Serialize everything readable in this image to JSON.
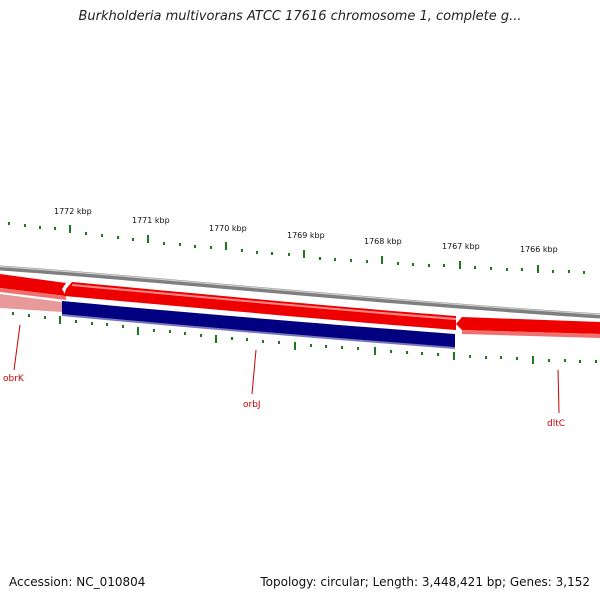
{
  "title": "Burkholderia multivorans ATCC 17616 chromosome 1, complete g...",
  "scale_labels": [
    "1772 kbp",
    "1771 kbp",
    "1770 kbp",
    "1769 kbp",
    "1768 kbp",
    "1767 kbp",
    "1766 kbp"
  ],
  "genes": [
    {
      "name": "obrK",
      "strand": "forward",
      "color": "#ee0000"
    },
    {
      "name": "orbJ",
      "strand": "reverse",
      "color": "#000080"
    },
    {
      "name": "dltC",
      "strand": "forward",
      "color": "#ee0000"
    }
  ],
  "footer": {
    "accession": "Accession: NC_010804",
    "summary": "Topology: circular; Length: 3,448,421 bp; Genes: 3,152"
  },
  "colors": {
    "forward": "#ee0000",
    "reverse": "#000080",
    "backbone": "#7f7f7f",
    "tick": "#1a7a1a",
    "label": "#cc0000"
  }
}
